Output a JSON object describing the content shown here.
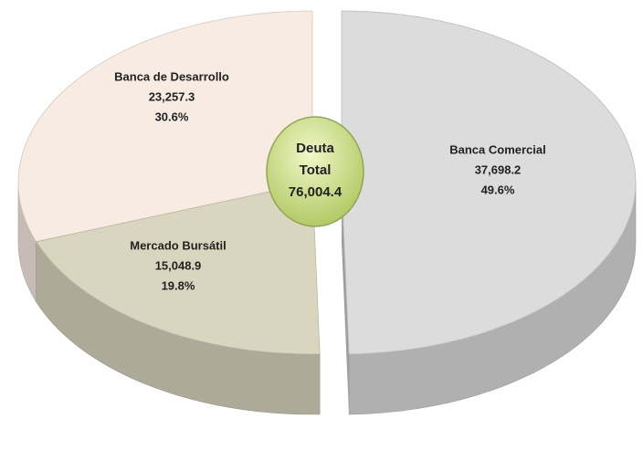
{
  "chart_data": {
    "type": "pie",
    "categories": [
      "Banca Comercial",
      "Mercado Bursátil",
      "Banca de Desarrollo"
    ],
    "values": [
      37698.2,
      15048.9,
      23257.3
    ],
    "value_labels": [
      "37,698.2",
      "15,048.9",
      "23,257.3"
    ],
    "percentages": [
      49.6,
      19.8,
      30.6
    ],
    "percentage_labels": [
      "49.6%",
      "19.8%",
      "30.6%"
    ],
    "colors": [
      "#dcdcdc",
      "#d9d5bf",
      "#f8ebe2"
    ],
    "center_label": [
      "Deuta",
      "Total"
    ],
    "total": 76004.4,
    "total_label": "76,004.4"
  }
}
